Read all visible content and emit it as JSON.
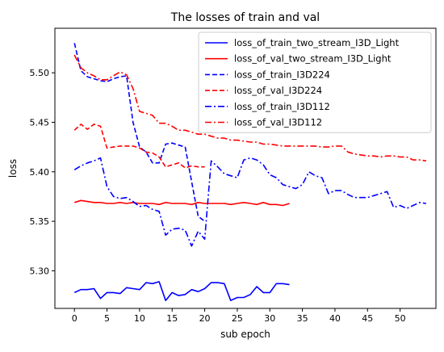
{
  "chart_data": {
    "type": "line",
    "title": "The losses of train and val",
    "xlabel": "sub epoch",
    "ylabel": "loss",
    "xlim": [
      -3,
      55.5
    ],
    "ylim": [
      5.262,
      5.545
    ],
    "xticks": [
      0,
      5,
      10,
      15,
      20,
      25,
      30,
      35,
      40,
      45,
      50
    ],
    "yticks": [
      5.3,
      5.35,
      5.4,
      5.45,
      5.5
    ],
    "ytick_labels": [
      "5.30",
      "5.35",
      "5.40",
      "5.45",
      "5.50"
    ],
    "grid": false,
    "legend_position": "top-right",
    "series": [
      {
        "name": "loss_of_train_two_stream_I3D_Light",
        "color": "#0000ff",
        "style": "solid",
        "x": [
          0,
          1,
          2,
          3,
          4,
          5,
          6,
          7,
          8,
          9,
          10,
          11,
          12,
          13,
          14,
          15,
          16,
          17,
          18,
          19,
          20,
          21,
          22,
          23,
          24,
          25,
          26,
          27,
          28,
          29,
          30,
          31,
          32,
          33
        ],
        "y": [
          5.278,
          5.281,
          5.281,
          5.282,
          5.272,
          5.278,
          5.278,
          5.277,
          5.283,
          5.282,
          5.281,
          5.288,
          5.287,
          5.289,
          5.27,
          5.278,
          5.275,
          5.276,
          5.281,
          5.279,
          5.282,
          5.288,
          5.288,
          5.287,
          5.27,
          5.273,
          5.273,
          5.276,
          5.284,
          5.278,
          5.278,
          5.287,
          5.287,
          5.286
        ]
      },
      {
        "name": "loss_of_val_two_stream_I3D_Light",
        "color": "#ff0000",
        "style": "solid",
        "x": [
          0,
          1,
          2,
          3,
          4,
          5,
          6,
          7,
          8,
          9,
          10,
          11,
          12,
          13,
          14,
          15,
          16,
          17,
          18,
          19,
          20,
          21,
          22,
          23,
          24,
          25,
          26,
          27,
          28,
          29,
          30,
          31,
          32,
          33
        ],
        "y": [
          5.369,
          5.371,
          5.37,
          5.369,
          5.369,
          5.368,
          5.368,
          5.369,
          5.368,
          5.369,
          5.368,
          5.368,
          5.368,
          5.367,
          5.369,
          5.368,
          5.368,
          5.368,
          5.367,
          5.369,
          5.368,
          5.368,
          5.368,
          5.368,
          5.367,
          5.368,
          5.369,
          5.368,
          5.367,
          5.369,
          5.367,
          5.367,
          5.366,
          5.368
        ]
      },
      {
        "name": "loss_of_train_I3D224",
        "color": "#0000ff",
        "style": "dashed",
        "x": [
          0,
          1,
          2,
          3,
          4,
          5,
          6,
          7,
          8,
          9,
          10,
          11,
          12,
          13,
          14,
          15,
          16,
          17,
          18,
          19,
          20
        ],
        "y": [
          5.53,
          5.502,
          5.496,
          5.494,
          5.492,
          5.491,
          5.494,
          5.496,
          5.497,
          5.45,
          5.425,
          5.42,
          5.409,
          5.409,
          5.428,
          5.429,
          5.427,
          5.425,
          5.39,
          5.355,
          5.35
        ]
      },
      {
        "name": "loss_of_val_I3D224",
        "color": "#ff0000",
        "style": "dashed",
        "x": [
          0,
          1,
          2,
          3,
          4,
          5,
          6,
          7,
          8,
          9,
          10,
          11,
          12,
          13,
          14,
          15,
          16,
          17,
          18,
          19,
          20
        ],
        "y": [
          5.442,
          5.448,
          5.443,
          5.448,
          5.446,
          5.424,
          5.425,
          5.426,
          5.426,
          5.426,
          5.424,
          5.42,
          5.419,
          5.415,
          5.405,
          5.407,
          5.409,
          5.404,
          5.406,
          5.405,
          5.405
        ]
      },
      {
        "name": "loss_of_train_I3D112",
        "color": "#0000ff",
        "style": "dashdot",
        "x": [
          0,
          1,
          2,
          3,
          4,
          5,
          6,
          7,
          8,
          9,
          10,
          11,
          12,
          13,
          14,
          15,
          16,
          17,
          18,
          19,
          20,
          21,
          22,
          23,
          24,
          25,
          26,
          27,
          28,
          29,
          30,
          31,
          32,
          33,
          34,
          35,
          36,
          37,
          38,
          39,
          40,
          41,
          42,
          43,
          44,
          45,
          46,
          47,
          48,
          49,
          50,
          51,
          52,
          53,
          54
        ],
        "y": [
          5.402,
          5.406,
          5.409,
          5.411,
          5.414,
          5.385,
          5.375,
          5.373,
          5.374,
          5.37,
          5.365,
          5.366,
          5.362,
          5.36,
          5.336,
          5.342,
          5.343,
          5.341,
          5.325,
          5.34,
          5.332,
          5.411,
          5.405,
          5.398,
          5.396,
          5.394,
          5.412,
          5.414,
          5.412,
          5.407,
          5.397,
          5.394,
          5.387,
          5.385,
          5.383,
          5.387,
          5.4,
          5.396,
          5.394,
          5.378,
          5.381,
          5.381,
          5.377,
          5.374,
          5.374,
          5.374,
          5.376,
          5.378,
          5.38,
          5.364,
          5.366,
          5.363,
          5.366,
          5.369,
          5.368
        ]
      },
      {
        "name": "loss_of_val_I3D112",
        "color": "#ff0000",
        "style": "dashdot",
        "x": [
          0,
          1,
          2,
          3,
          4,
          5,
          6,
          7,
          8,
          9,
          10,
          11,
          12,
          13,
          14,
          15,
          16,
          17,
          18,
          19,
          20,
          21,
          22,
          23,
          24,
          25,
          26,
          27,
          28,
          29,
          30,
          31,
          32,
          33,
          34,
          35,
          36,
          37,
          38,
          39,
          40,
          41,
          42,
          43,
          44,
          45,
          46,
          47,
          48,
          49,
          50,
          51,
          52,
          53,
          54
        ],
        "y": [
          5.518,
          5.505,
          5.5,
          5.497,
          5.493,
          5.493,
          5.497,
          5.501,
          5.498,
          5.484,
          5.461,
          5.459,
          5.457,
          5.449,
          5.449,
          5.446,
          5.442,
          5.442,
          5.44,
          5.438,
          5.438,
          5.436,
          5.434,
          5.434,
          5.432,
          5.432,
          5.431,
          5.43,
          5.43,
          5.428,
          5.428,
          5.427,
          5.426,
          5.426,
          5.426,
          5.426,
          5.426,
          5.426,
          5.425,
          5.425,
          5.426,
          5.426,
          5.42,
          5.418,
          5.417,
          5.416,
          5.416,
          5.415,
          5.416,
          5.416,
          5.415,
          5.415,
          5.412,
          5.412,
          5.411
        ]
      }
    ]
  }
}
